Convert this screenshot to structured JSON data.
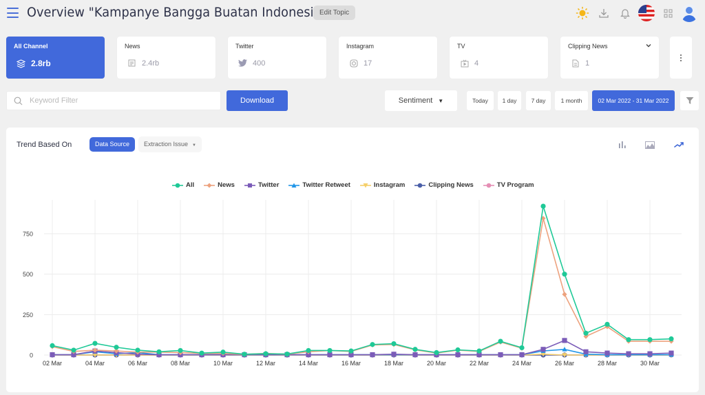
{
  "header": {
    "title": "Overview \"Kampanye Bangga Buatan Indonesia\"",
    "edit_topic_label": "Edit Topic",
    "icons": [
      "menu-icon",
      "sun-icon",
      "download-icon",
      "bell-icon",
      "us-flag-icon",
      "grid-icon",
      "user-avatar-icon"
    ]
  },
  "channels": [
    {
      "label": "All Channel",
      "value": "2.8rb",
      "icon": "layers-icon",
      "active": true
    },
    {
      "label": "News",
      "value": "2.4rb",
      "icon": "newspaper-icon",
      "active": false
    },
    {
      "label": "Twitter",
      "value": "400",
      "icon": "twitter-icon",
      "active": false
    },
    {
      "label": "Instagram",
      "value": "17",
      "icon": "instagram-icon",
      "active": false
    },
    {
      "label": "TV",
      "value": "4",
      "icon": "tv-icon",
      "active": false
    },
    {
      "label": "Clipping News",
      "value": "1",
      "icon": "document-icon",
      "active": false,
      "has_dropdown": true
    }
  ],
  "filters": {
    "keyword_placeholder": "Keyword Filter",
    "keyword_value": "",
    "download_label": "Download",
    "sentiment_label": "Sentiment",
    "ranges": [
      "Today",
      "1 day",
      "7 day",
      "1 month"
    ],
    "date_range": "02 Mar 2022 - 31 Mar 2022"
  },
  "trend": {
    "title": "Trend Based On",
    "tabs": [
      {
        "label": "Data Source",
        "active": true
      },
      {
        "label": "Extraction Issue",
        "active": false,
        "dropdown": true
      }
    ],
    "chart_type_buttons": [
      "bar-chart-icon",
      "area-chart-icon",
      "line-chart-icon"
    ],
    "active_chart_type": "line-chart-icon"
  },
  "colors": {
    "accent": "#4169db",
    "All": "#1fc997",
    "News": "#eda27e",
    "Twitter": "#7b5cb8",
    "Twitter Retweet": "#2196e8",
    "Instagram": "#f5cf6a",
    "Clipping News": "#4a5fa8",
    "TV Program": "#e58fb5"
  },
  "chart_data": {
    "type": "line",
    "title": "",
    "xlabel": "",
    "ylabel": "",
    "ylim": [
      0,
      950
    ],
    "yticks": [
      0,
      250,
      500,
      750
    ],
    "grid": true,
    "legend_position": "top",
    "x": [
      "02 Mar",
      "03 Mar",
      "04 Mar",
      "05 Mar",
      "06 Mar",
      "07 Mar",
      "08 Mar",
      "09 Mar",
      "10 Mar",
      "11 Mar",
      "12 Mar",
      "13 Mar",
      "14 Mar",
      "15 Mar",
      "16 Mar",
      "17 Mar",
      "18 Mar",
      "19 Mar",
      "20 Mar",
      "21 Mar",
      "22 Mar",
      "23 Mar",
      "24 Mar",
      "25 Mar",
      "26 Mar",
      "27 Mar",
      "28 Mar",
      "29 Mar",
      "30 Mar",
      "31 Mar"
    ],
    "xtick_labels": [
      "02 Mar",
      "04 Mar",
      "06 Mar",
      "08 Mar",
      "10 Mar",
      "12 Mar",
      "14 Mar",
      "16 Mar",
      "18 Mar",
      "20 Mar",
      "22 Mar",
      "24 Mar",
      "26 Mar",
      "28 Mar",
      "30 Mar"
    ],
    "series": [
      {
        "name": "All",
        "marker": "circle",
        "values": [
          58,
          30,
          72,
          48,
          30,
          20,
          28,
          12,
          18,
          5,
          8,
          6,
          28,
          28,
          25,
          65,
          70,
          35,
          15,
          32,
          25,
          85,
          45,
          920,
          500,
          135,
          190,
          95,
          95,
          100
        ]
      },
      {
        "name": "News",
        "marker": "diamond",
        "values": [
          52,
          22,
          30,
          25,
          18,
          18,
          15,
          10,
          10,
          4,
          10,
          5,
          20,
          28,
          22,
          62,
          65,
          32,
          12,
          30,
          22,
          80,
          42,
          845,
          375,
          115,
          175,
          85,
          85,
          85
        ]
      },
      {
        "name": "Twitter",
        "marker": "square",
        "values": [
          2,
          2,
          25,
          15,
          5,
          2,
          2,
          2,
          2,
          2,
          2,
          2,
          2,
          2,
          2,
          2,
          5,
          2,
          2,
          2,
          2,
          2,
          2,
          35,
          90,
          20,
          12,
          8,
          8,
          12
        ]
      },
      {
        "name": "Twitter Retweet",
        "marker": "triangle",
        "values": [
          2,
          2,
          20,
          8,
          15,
          2,
          2,
          2,
          2,
          2,
          2,
          2,
          2,
          2,
          2,
          2,
          2,
          2,
          2,
          2,
          2,
          2,
          2,
          25,
          35,
          5,
          2,
          2,
          2,
          2
        ]
      },
      {
        "name": "Instagram",
        "marker": "triangle-down",
        "values": [
          0,
          0,
          0,
          0,
          0,
          0,
          0,
          0,
          0,
          0,
          0,
          0,
          0,
          0,
          0,
          0,
          0,
          0,
          0,
          0,
          0,
          0,
          0,
          5,
          0,
          0,
          0,
          0,
          0,
          0
        ]
      },
      {
        "name": "Clipping News",
        "marker": "circle",
        "values": [
          0,
          0,
          0,
          0,
          0,
          0,
          0,
          0,
          0,
          0,
          0,
          0,
          0,
          0,
          0,
          0,
          0,
          0,
          0,
          0,
          0,
          0,
          0,
          0,
          0,
          0,
          0,
          0,
          0,
          1
        ]
      },
      {
        "name": "TV Program",
        "marker": "circle",
        "values": [
          0,
          0,
          0,
          0,
          0,
          0,
          0,
          0,
          0,
          0,
          0,
          0,
          0,
          0,
          0,
          0,
          0,
          0,
          0,
          0,
          0,
          0,
          0,
          0,
          0,
          0,
          0,
          0,
          0,
          0
        ]
      }
    ]
  }
}
